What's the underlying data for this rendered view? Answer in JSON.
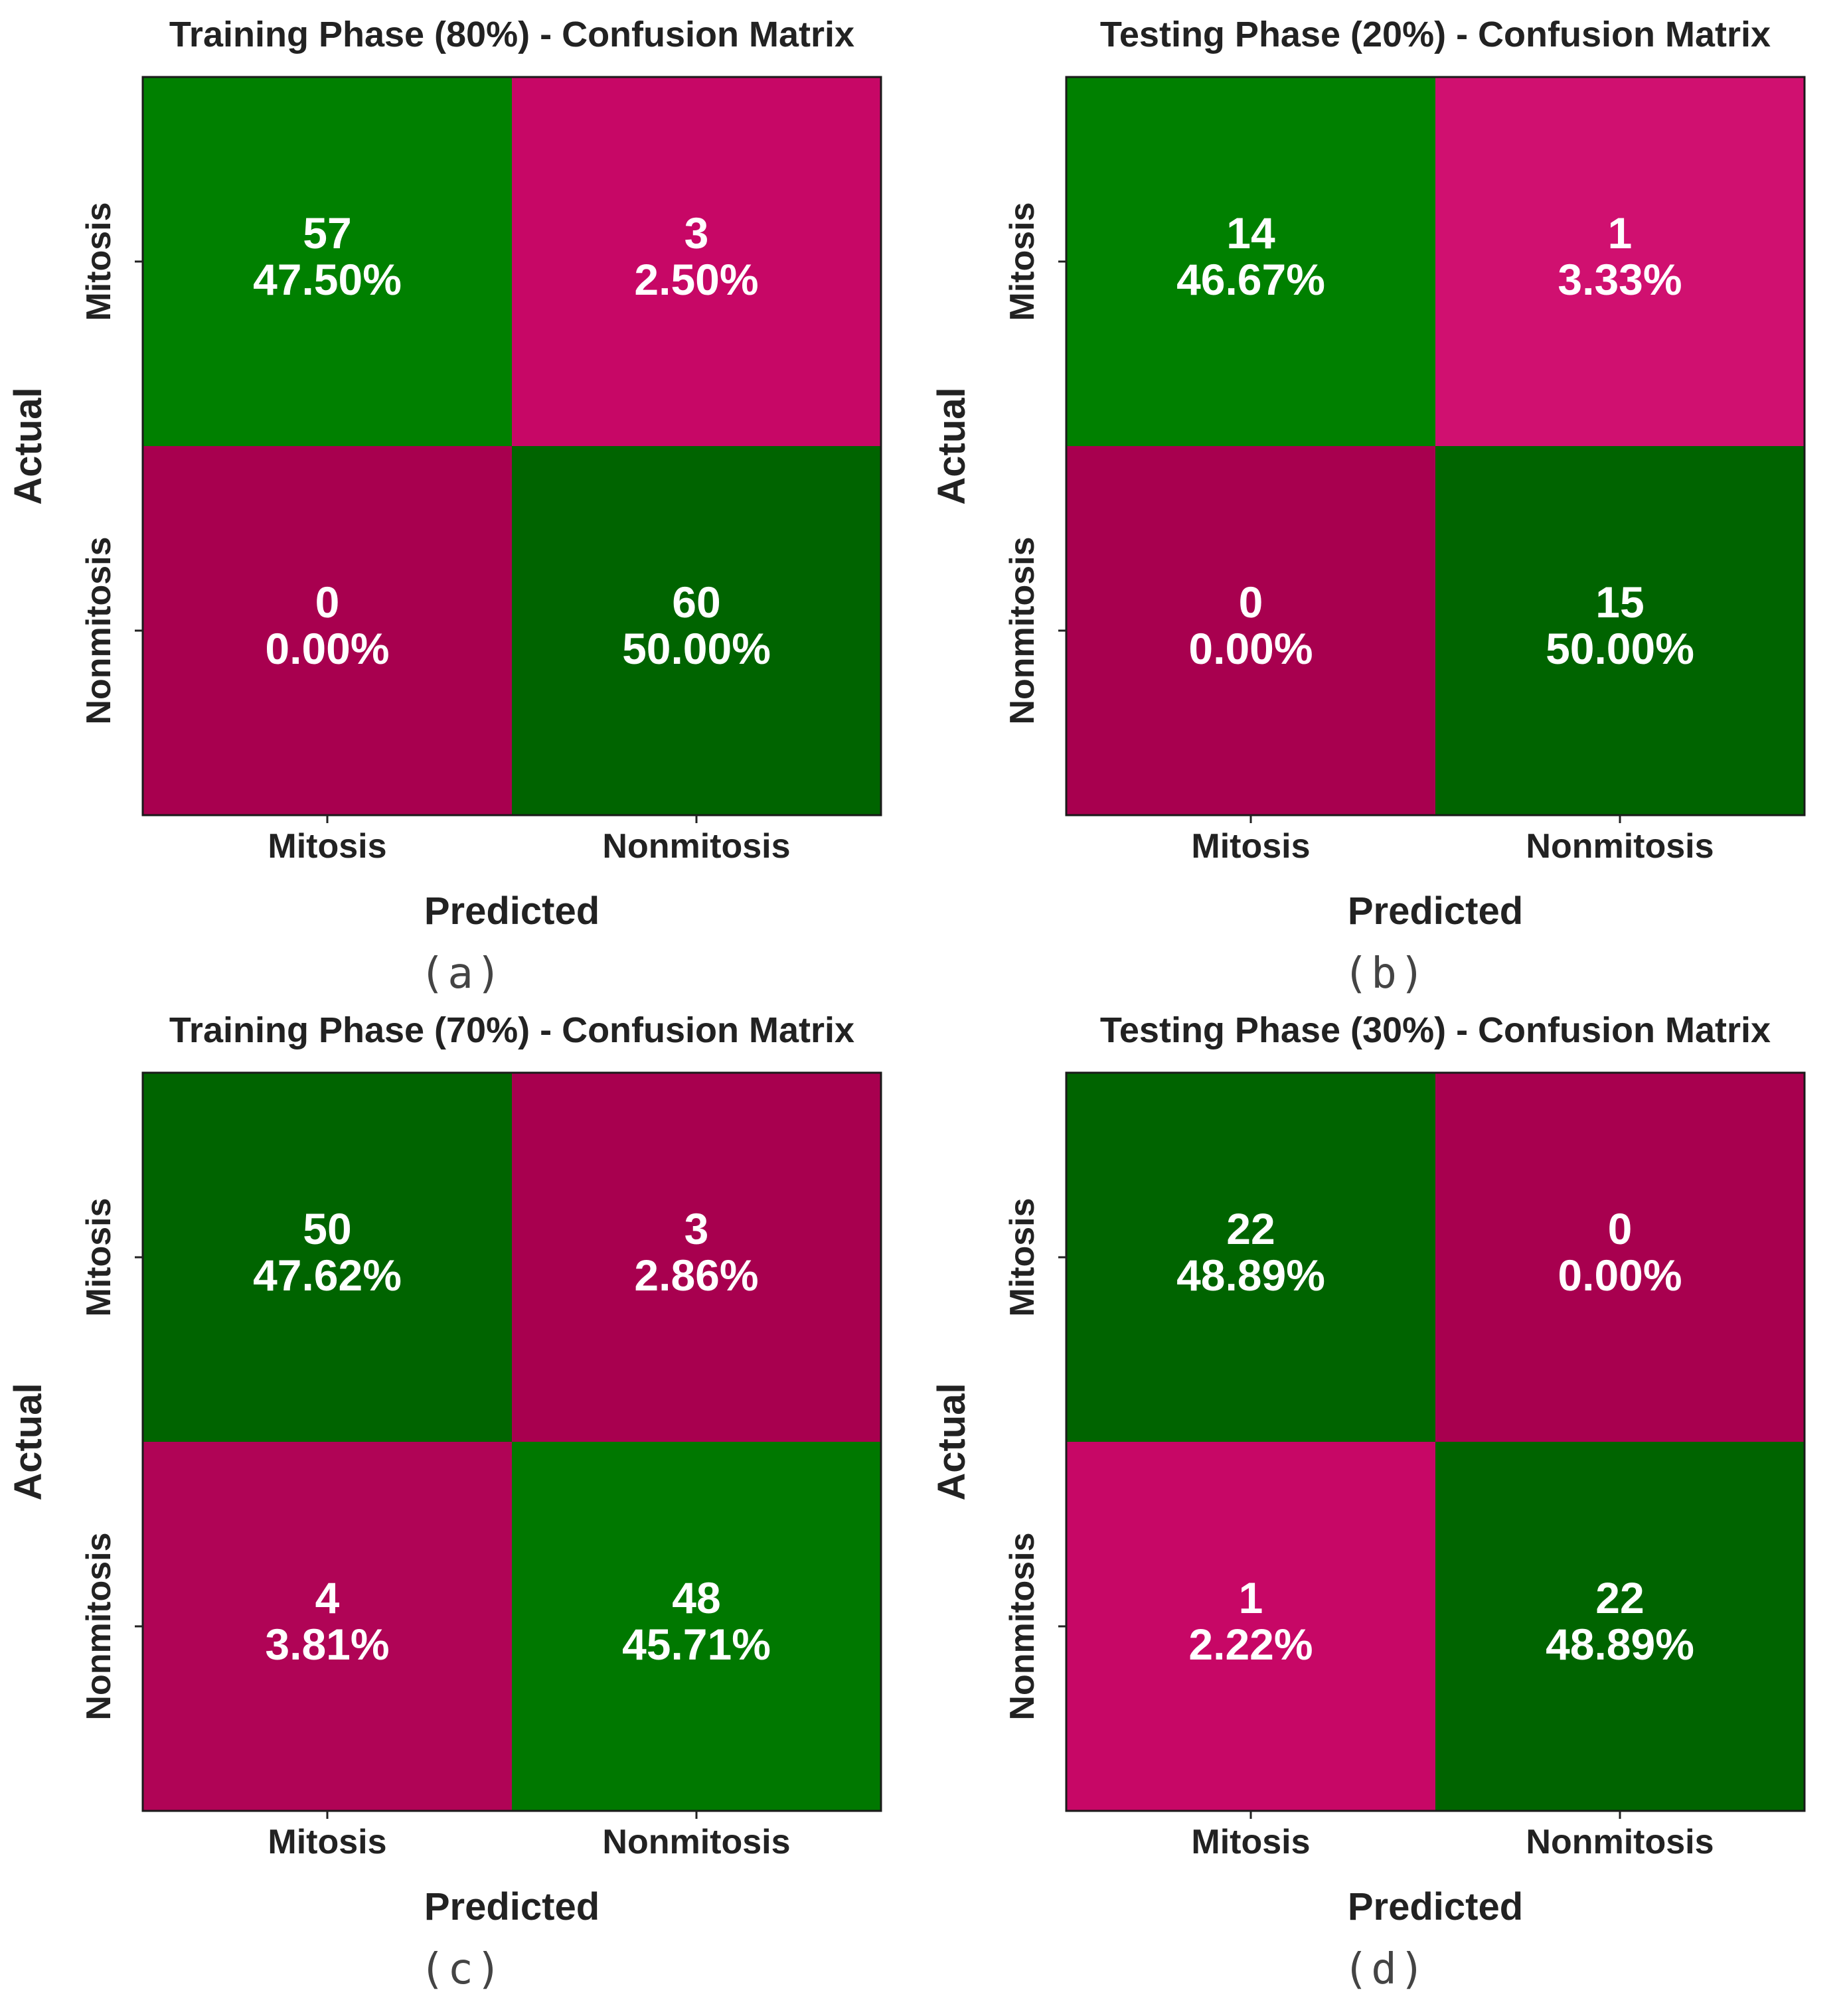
{
  "colors": {
    "dark_green": "#006400",
    "green": "#008000",
    "dark_magenta": "#a8004f",
    "magenta": "#c70766",
    "text_on_cell": "#ffffff",
    "axis_text": "#222222"
  },
  "chart_data": [
    {
      "type": "heatmap",
      "panel": "(a)",
      "title": "Training Phase (80%) - Confusion Matrix",
      "xlabel": "Predicted",
      "ylabel": "Actual",
      "x_categories": [
        "Mitosis",
        "Nonmitosis"
      ],
      "y_categories": [
        "Mitosis",
        "Nonmitosis"
      ],
      "counts": [
        [
          57,
          3
        ],
        [
          0,
          60
        ]
      ],
      "percent_labels": [
        [
          "47.50%",
          "2.50%"
        ],
        [
          "0.00%",
          "50.00%"
        ]
      ],
      "cell_colors": [
        [
          "#008000",
          "#c70766"
        ],
        [
          "#a8004f",
          "#006400"
        ]
      ],
      "caption": "(a)"
    },
    {
      "type": "heatmap",
      "panel": "(b)",
      "title": "Testing Phase (20%) - Confusion Matrix",
      "xlabel": "Predicted",
      "ylabel": "Actual",
      "x_categories": [
        "Mitosis",
        "Nonmitosis"
      ],
      "y_categories": [
        "Mitosis",
        "Nonmitosis"
      ],
      "counts": [
        [
          14,
          1
        ],
        [
          0,
          15
        ]
      ],
      "percent_labels": [
        [
          "46.67%",
          "3.33%"
        ],
        [
          "0.00%",
          "50.00%"
        ]
      ],
      "cell_colors": [
        [
          "#008000",
          "#d01070"
        ],
        [
          "#a8004f",
          "#006400"
        ]
      ],
      "caption": "(b)"
    },
    {
      "type": "heatmap",
      "panel": "(c)",
      "title": "Training Phase (70%) - Confusion Matrix",
      "xlabel": "Predicted",
      "ylabel": "Actual",
      "x_categories": [
        "Mitosis",
        "Nonmitosis"
      ],
      "y_categories": [
        "Mitosis",
        "Nonmitosis"
      ],
      "counts": [
        [
          50,
          3
        ],
        [
          4,
          48
        ]
      ],
      "percent_labels": [
        [
          "47.62%",
          "2.86%"
        ],
        [
          "3.81%",
          "45.71%"
        ]
      ],
      "cell_colors": [
        [
          "#006400",
          "#a8004f"
        ],
        [
          "#b00456",
          "#007800"
        ]
      ],
      "caption": "(c)"
    },
    {
      "type": "heatmap",
      "panel": "(d)",
      "title": "Testing Phase (30%) - Confusion Matrix",
      "xlabel": "Predicted",
      "ylabel": "Actual",
      "x_categories": [
        "Mitosis",
        "Nonmitosis"
      ],
      "y_categories": [
        "Mitosis",
        "Nonmitosis"
      ],
      "counts": [
        [
          22,
          0
        ],
        [
          1,
          22
        ]
      ],
      "percent_labels": [
        [
          "48.89%",
          "0.00%"
        ],
        [
          "2.22%",
          "48.89%"
        ]
      ],
      "cell_colors": [
        [
          "#006400",
          "#a8004f"
        ],
        [
          "#c70766",
          "#006400"
        ]
      ],
      "caption": "(d)"
    }
  ]
}
